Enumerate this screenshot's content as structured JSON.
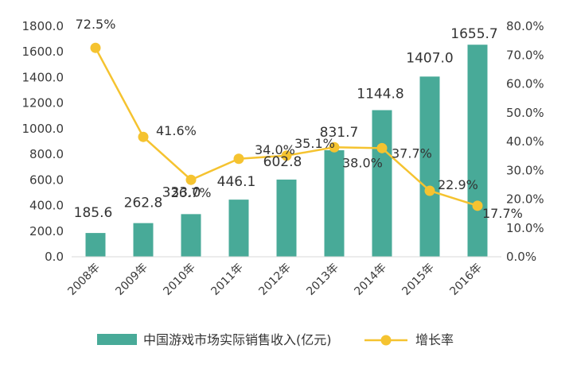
{
  "chart_data": {
    "type": "bar",
    "categories": [
      "2008年",
      "2009年",
      "2010年",
      "2011年",
      "2012年",
      "2013年",
      "2014年",
      "2015年",
      "2016年"
    ],
    "series": [
      {
        "name": "中国游戏市场实际销售收入(亿元)",
        "type": "bar",
        "axis": "left",
        "color": "#48aa98",
        "values": [
          185.6,
          262.8,
          333.0,
          446.1,
          602.8,
          831.7,
          1144.8,
          1407.0,
          1655.7
        ],
        "labels": [
          "185.6",
          "262.8",
          "333.0",
          "446.1",
          "602.8",
          "831.7",
          "1144.8",
          "1407.0",
          "1655.7"
        ]
      },
      {
        "name": "增长率",
        "type": "line",
        "axis": "right",
        "color": "#f5c330",
        "values": [
          72.5,
          41.6,
          26.7,
          34.0,
          35.1,
          38.0,
          37.7,
          22.9,
          17.7
        ],
        "labels": [
          "72.5%",
          "41.6%",
          "26.7%",
          "34.0%",
          "35.1%",
          "38.0%",
          "37.7%",
          "22.9%",
          "17.7%"
        ]
      }
    ],
    "y_left": {
      "min": 0,
      "max": 1800,
      "step": 200,
      "tick_labels": [
        "0.0",
        "200.0",
        "400.0",
        "600.0",
        "800.0",
        "1000.0",
        "1200.0",
        "1400.0",
        "1600.0",
        "1800.0"
      ]
    },
    "y_right": {
      "min": 0,
      "max": 80,
      "step": 10,
      "tick_labels": [
        "0.0%",
        "10.0%",
        "20.0%",
        "30.0%",
        "40.0%",
        "50.0%",
        "60.0%",
        "70.0%",
        "80.0%"
      ]
    },
    "title": "",
    "xlabel": "",
    "ylabel": "",
    "grid": false,
    "legend": {
      "position": "bottom",
      "entries": [
        "中国游戏市场实际销售收入(亿元)",
        "增长率"
      ]
    }
  }
}
